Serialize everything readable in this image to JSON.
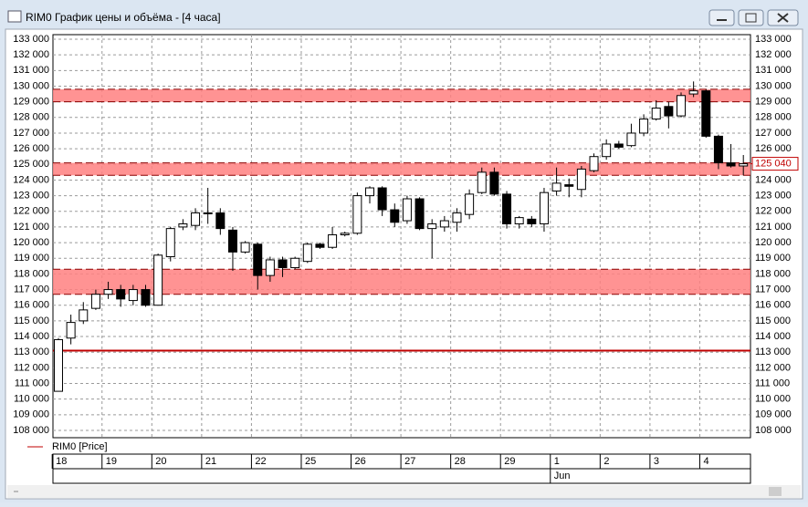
{
  "window_title": "RIM0 График цены и объёма - [4 часа]",
  "chart_data": {
    "type": "candlestick",
    "legend": "RIM0 [Price]",
    "legend_color": "#c00000",
    "ylim": [
      108000,
      133000
    ],
    "yticks": [
      {
        "value": 108000,
        "label": "108 000"
      },
      {
        "value": 109000,
        "label": "109 000"
      },
      {
        "value": 110000,
        "label": "110 000"
      },
      {
        "value": 111000,
        "label": "111 000"
      },
      {
        "value": 112000,
        "label": "112 000"
      },
      {
        "value": 113000,
        "label": "113 000"
      },
      {
        "value": 114000,
        "label": "114 000"
      },
      {
        "value": 115000,
        "label": "115 000"
      },
      {
        "value": 116000,
        "label": "116 000"
      },
      {
        "value": 117000,
        "label": "117 000"
      },
      {
        "value": 118000,
        "label": "118 000"
      },
      {
        "value": 119000,
        "label": "119 000"
      },
      {
        "value": 120000,
        "label": "120 000"
      },
      {
        "value": 121000,
        "label": "121 000"
      },
      {
        "value": 122000,
        "label": "122 000"
      },
      {
        "value": 123000,
        "label": "123 000"
      },
      {
        "value": 124000,
        "label": "124 000"
      },
      {
        "value": 125000,
        "label": "125 000"
      },
      {
        "value": 126000,
        "label": "126 000"
      },
      {
        "value": 127000,
        "label": "127 000"
      },
      {
        "value": 128000,
        "label": "128 000"
      },
      {
        "value": 129000,
        "label": "129 000"
      },
      {
        "value": 130000,
        "label": "130 000"
      },
      {
        "value": 131000,
        "label": "131 000"
      },
      {
        "value": 132000,
        "label": "132 000"
      },
      {
        "value": 133000,
        "label": "133 000"
      }
    ],
    "grid": true,
    "categories": [
      "18",
      null,
      null,
      null,
      "19",
      null,
      null,
      null,
      "20",
      null,
      null,
      null,
      "21",
      null,
      null,
      null,
      "22",
      null,
      null,
      null,
      "25",
      null,
      null,
      null,
      "26",
      null,
      null,
      null,
      "27",
      null,
      null,
      null,
      "28",
      null,
      null,
      null,
      "29",
      null,
      null,
      null,
      "1",
      null,
      null,
      null,
      "2",
      null,
      null,
      null,
      "3",
      null,
      null,
      null,
      "4",
      null,
      null,
      null
    ],
    "months": [
      null,
      null,
      null,
      null,
      null,
      null,
      null,
      null,
      null,
      null,
      null,
      null,
      null,
      null,
      null,
      null,
      null,
      null,
      null,
      null,
      null,
      null,
      null,
      null,
      null,
      null,
      null,
      null,
      null,
      null,
      null,
      null,
      null,
      null,
      null,
      null,
      null,
      null,
      null,
      null,
      "Jun",
      null,
      null,
      null,
      null,
      null,
      null,
      null,
      null,
      null,
      null,
      null,
      null,
      null,
      null,
      null
    ],
    "open": [
      110500,
      113900,
      115000,
      115800,
      116700,
      117000,
      116300,
      117000,
      116000,
      119100,
      121000,
      121100,
      121900,
      121900,
      120800,
      119400,
      119900,
      117900,
      118900,
      118400,
      118800,
      119900,
      119700,
      120500,
      120600,
      123000,
      123500,
      122100,
      121400,
      122800,
      120900,
      121000,
      121300,
      121800,
      123200,
      124500,
      123100,
      121200,
      121500,
      121200,
      123300,
      123700,
      123400,
      124600,
      125500,
      126300,
      126200,
      127000,
      127900,
      128700,
      128100,
      129500,
      129700,
      126800,
      125100,
      124900
    ],
    "high": [
      113900,
      115400,
      116200,
      117000,
      117500,
      117300,
      117300,
      117300,
      119300,
      121000,
      121500,
      122200,
      123500,
      122200,
      121000,
      120100,
      120000,
      119100,
      119100,
      119100,
      120000,
      120000,
      121000,
      120700,
      123200,
      123600,
      123600,
      122500,
      123000,
      122900,
      121500,
      121700,
      122200,
      123400,
      124800,
      124800,
      123300,
      121700,
      121700,
      123500,
      124800,
      124100,
      124900,
      125700,
      126600,
      126500,
      127600,
      128200,
      129100,
      129000,
      129600,
      130300,
      129800,
      126900,
      126300,
      125600
    ],
    "low": [
      110500,
      113500,
      114800,
      115700,
      116400,
      115900,
      116000,
      115900,
      116000,
      118800,
      120800,
      120800,
      121200,
      120500,
      118200,
      119300,
      117000,
      117500,
      117800,
      118300,
      118700,
      119600,
      119600,
      120400,
      120500,
      122500,
      121700,
      121000,
      121200,
      120800,
      119000,
      120700,
      120700,
      121500,
      123100,
      123000,
      120900,
      120900,
      121000,
      120700,
      123000,
      122900,
      122900,
      124500,
      125300,
      126000,
      126100,
      126800,
      127800,
      127300,
      128000,
      129300,
      126700,
      124700,
      124800,
      124300
    ],
    "close": [
      113800,
      114900,
      115700,
      116700,
      117000,
      116400,
      117000,
      116000,
      119200,
      120900,
      121200,
      121900,
      121850,
      120900,
      119400,
      120000,
      117900,
      118900,
      118400,
      119000,
      119900,
      119700,
      120500,
      120600,
      123000,
      123500,
      122100,
      121300,
      122800,
      120900,
      121200,
      121400,
      121900,
      123100,
      124500,
      123100,
      121200,
      121600,
      121200,
      123200,
      123800,
      123600,
      124700,
      125500,
      126300,
      126100,
      127000,
      127900,
      128600,
      128100,
      129400,
      129700,
      126800,
      125100,
      124900,
      125040
    ],
    "last_price": {
      "value": 125040,
      "label": "125 040"
    },
    "zones": [
      {
        "from": 129000,
        "to": 129800
      },
      {
        "from": 124300,
        "to": 125100
      },
      {
        "from": 116700,
        "to": 118300
      }
    ],
    "levels": [
      113100
    ],
    "zone_color": "#ff8080",
    "level_color": "#c00000"
  }
}
